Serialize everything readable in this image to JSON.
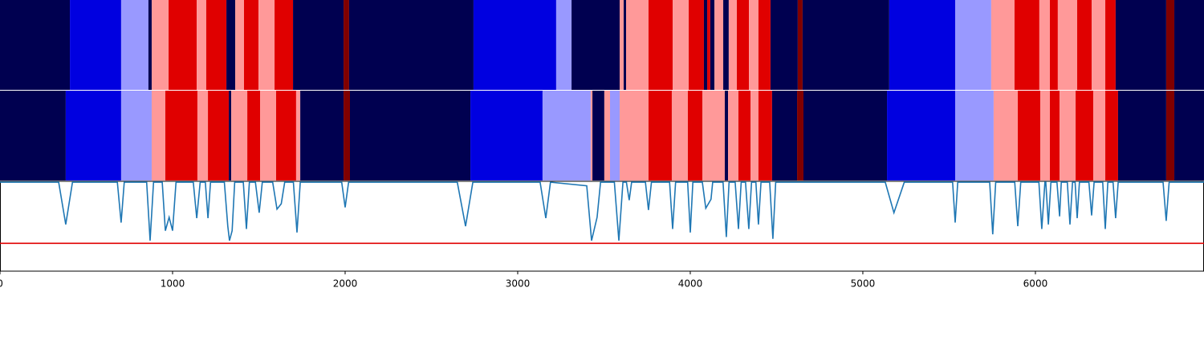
{
  "chart_data": [
    {
      "type": "segments",
      "xlim": [
        0,
        6977
      ],
      "segments": [
        {
          "start": 0,
          "end": 405,
          "color": "#000050"
        },
        {
          "start": 405,
          "end": 702,
          "color": "#0000e0"
        },
        {
          "start": 702,
          "end": 860,
          "color": "#9999ff"
        },
        {
          "start": 860,
          "end": 879,
          "color": "#000050"
        },
        {
          "start": 879,
          "end": 977,
          "color": "#ff9999"
        },
        {
          "start": 977,
          "end": 1140,
          "color": "#e00000"
        },
        {
          "start": 1140,
          "end": 1195,
          "color": "#ff9999"
        },
        {
          "start": 1195,
          "end": 1312,
          "color": "#e00000"
        },
        {
          "start": 1312,
          "end": 1363,
          "color": "#000050"
        },
        {
          "start": 1363,
          "end": 1414,
          "color": "#ff9999"
        },
        {
          "start": 1414,
          "end": 1498,
          "color": "#e00000"
        },
        {
          "start": 1498,
          "end": 1591,
          "color": "#ff9999"
        },
        {
          "start": 1591,
          "end": 1698,
          "color": "#e00000"
        },
        {
          "start": 1698,
          "end": 1991,
          "color": "#000050"
        },
        {
          "start": 1991,
          "end": 2023,
          "color": "#800000"
        },
        {
          "start": 2023,
          "end": 2744,
          "color": "#000050"
        },
        {
          "start": 2744,
          "end": 3223,
          "color": "#0000e0"
        },
        {
          "start": 3223,
          "end": 3312,
          "color": "#9999ff"
        },
        {
          "start": 3312,
          "end": 3591,
          "color": "#000050"
        },
        {
          "start": 3591,
          "end": 3614,
          "color": "#ff9999"
        },
        {
          "start": 3614,
          "end": 3628,
          "color": "#000050"
        },
        {
          "start": 3628,
          "end": 3758,
          "color": "#ff9999"
        },
        {
          "start": 3758,
          "end": 3898,
          "color": "#e00000"
        },
        {
          "start": 3898,
          "end": 3991,
          "color": "#ff9999"
        },
        {
          "start": 3991,
          "end": 4079,
          "color": "#e00000"
        },
        {
          "start": 4079,
          "end": 4098,
          "color": "#000050"
        },
        {
          "start": 4098,
          "end": 4116,
          "color": "#e00000"
        },
        {
          "start": 4116,
          "end": 4140,
          "color": "#000050"
        },
        {
          "start": 4140,
          "end": 4191,
          "color": "#ff9999"
        },
        {
          "start": 4191,
          "end": 4223,
          "color": "#000050"
        },
        {
          "start": 4223,
          "end": 4270,
          "color": "#ff9999"
        },
        {
          "start": 4270,
          "end": 4340,
          "color": "#e00000"
        },
        {
          "start": 4340,
          "end": 4395,
          "color": "#ff9999"
        },
        {
          "start": 4395,
          "end": 4465,
          "color": "#e00000"
        },
        {
          "start": 4465,
          "end": 4623,
          "color": "#000050"
        },
        {
          "start": 4623,
          "end": 4651,
          "color": "#800000"
        },
        {
          "start": 4651,
          "end": 5153,
          "color": "#000050"
        },
        {
          "start": 5153,
          "end": 5535,
          "color": "#0000e0"
        },
        {
          "start": 5535,
          "end": 5744,
          "color": "#9999ff"
        },
        {
          "start": 5744,
          "end": 5879,
          "color": "#ff9999"
        },
        {
          "start": 5879,
          "end": 6023,
          "color": "#e00000"
        },
        {
          "start": 6023,
          "end": 6084,
          "color": "#ff9999"
        },
        {
          "start": 6084,
          "end": 6130,
          "color": "#e00000"
        },
        {
          "start": 6130,
          "end": 6242,
          "color": "#ff9999"
        },
        {
          "start": 6242,
          "end": 6326,
          "color": "#e00000"
        },
        {
          "start": 6326,
          "end": 6405,
          "color": "#ff9999"
        },
        {
          "start": 6405,
          "end": 6465,
          "color": "#e00000"
        },
        {
          "start": 6465,
          "end": 6758,
          "color": "#000050"
        },
        {
          "start": 6758,
          "end": 6805,
          "color": "#800000"
        },
        {
          "start": 6805,
          "end": 6977,
          "color": "#000050"
        }
      ]
    },
    {
      "type": "segments",
      "xlim": [
        0,
        6977
      ],
      "segments": [
        {
          "start": 0,
          "end": 381,
          "color": "#000050"
        },
        {
          "start": 381,
          "end": 702,
          "color": "#0000e0"
        },
        {
          "start": 702,
          "end": 879,
          "color": "#9999ff"
        },
        {
          "start": 879,
          "end": 958,
          "color": "#ff9999"
        },
        {
          "start": 958,
          "end": 1144,
          "color": "#e00000"
        },
        {
          "start": 1144,
          "end": 1205,
          "color": "#ff9999"
        },
        {
          "start": 1205,
          "end": 1326,
          "color": "#e00000"
        },
        {
          "start": 1326,
          "end": 1340,
          "color": "#000050"
        },
        {
          "start": 1340,
          "end": 1433,
          "color": "#ff9999"
        },
        {
          "start": 1433,
          "end": 1507,
          "color": "#e00000"
        },
        {
          "start": 1507,
          "end": 1600,
          "color": "#ff9999"
        },
        {
          "start": 1600,
          "end": 1716,
          "color": "#e00000"
        },
        {
          "start": 1716,
          "end": 1740,
          "color": "#ff9999"
        },
        {
          "start": 1740,
          "end": 1991,
          "color": "#000050"
        },
        {
          "start": 1991,
          "end": 2028,
          "color": "#800000"
        },
        {
          "start": 2028,
          "end": 2726,
          "color": "#000050"
        },
        {
          "start": 2726,
          "end": 3144,
          "color": "#0000e0"
        },
        {
          "start": 3144,
          "end": 3423,
          "color": "#9999ff"
        },
        {
          "start": 3423,
          "end": 3433,
          "color": "#ff9999"
        },
        {
          "start": 3433,
          "end": 3502,
          "color": "#000050"
        },
        {
          "start": 3502,
          "end": 3535,
          "color": "#ff9999"
        },
        {
          "start": 3535,
          "end": 3591,
          "color": "#9999ff"
        },
        {
          "start": 3591,
          "end": 3758,
          "color": "#ff9999"
        },
        {
          "start": 3758,
          "end": 3893,
          "color": "#e00000"
        },
        {
          "start": 3893,
          "end": 3986,
          "color": "#ff9999"
        },
        {
          "start": 3986,
          "end": 4070,
          "color": "#e00000"
        },
        {
          "start": 4070,
          "end": 4200,
          "color": "#ff9999"
        },
        {
          "start": 4200,
          "end": 4219,
          "color": "#000050"
        },
        {
          "start": 4219,
          "end": 4279,
          "color": "#ff9999"
        },
        {
          "start": 4279,
          "end": 4349,
          "color": "#e00000"
        },
        {
          "start": 4349,
          "end": 4395,
          "color": "#ff9999"
        },
        {
          "start": 4395,
          "end": 4474,
          "color": "#e00000"
        },
        {
          "start": 4474,
          "end": 4619,
          "color": "#000050"
        },
        {
          "start": 4619,
          "end": 4656,
          "color": "#800000"
        },
        {
          "start": 4656,
          "end": 5140,
          "color": "#000050"
        },
        {
          "start": 5140,
          "end": 5535,
          "color": "#0000e0"
        },
        {
          "start": 5535,
          "end": 5758,
          "color": "#9999ff"
        },
        {
          "start": 5758,
          "end": 5898,
          "color": "#ff9999"
        },
        {
          "start": 5898,
          "end": 6028,
          "color": "#e00000"
        },
        {
          "start": 6028,
          "end": 6084,
          "color": "#ff9999"
        },
        {
          "start": 6084,
          "end": 6140,
          "color": "#e00000"
        },
        {
          "start": 6140,
          "end": 6233,
          "color": "#ff9999"
        },
        {
          "start": 6233,
          "end": 6335,
          "color": "#e00000"
        },
        {
          "start": 6335,
          "end": 6405,
          "color": "#ff9999"
        },
        {
          "start": 6405,
          "end": 6479,
          "color": "#e00000"
        },
        {
          "start": 6479,
          "end": 6758,
          "color": "#000050"
        },
        {
          "start": 6758,
          "end": 6805,
          "color": "#800000"
        },
        {
          "start": 6805,
          "end": 6977,
          "color": "#000050"
        }
      ]
    },
    {
      "type": "line",
      "xlim": [
        0,
        6977
      ],
      "ylim": [
        0,
        1
      ],
      "xticks": [
        0,
        1000,
        2000,
        3000,
        4000,
        5000,
        6000
      ],
      "color": "#1f77b4",
      "threshold": 0.31,
      "threshold_color": "#e00000",
      "x": [
        0,
        340,
        381,
        420,
        680,
        702,
        720,
        850,
        870,
        890,
        940,
        958,
        980,
        1000,
        1020,
        1120,
        1140,
        1160,
        1190,
        1205,
        1220,
        1300,
        1320,
        1330,
        1345,
        1360,
        1410,
        1428,
        1445,
        1480,
        1502,
        1520,
        1580,
        1605,
        1630,
        1650,
        1700,
        1721,
        1740,
        1980,
        2000,
        2020,
        2650,
        2698,
        2740,
        3130,
        3163,
        3190,
        3400,
        3428,
        3460,
        3480,
        3560,
        3586,
        3610,
        3630,
        3646,
        3660,
        3740,
        3758,
        3775,
        3880,
        3898,
        3915,
        3985,
        4000,
        4015,
        4070,
        4090,
        4120,
        4130,
        4190,
        4209,
        4225,
        4260,
        4279,
        4295,
        4320,
        4339,
        4355,
        4380,
        4395,
        4410,
        4460,
        4479,
        4495,
        5130,
        5180,
        5240,
        5520,
        5535,
        5550,
        5735,
        5753,
        5770,
        5880,
        5898,
        5915,
        6020,
        6037,
        6055,
        6060,
        6075,
        6090,
        6125,
        6140,
        6150,
        6185,
        6200,
        6215,
        6230,
        6242,
        6255,
        6310,
        6326,
        6340,
        6390,
        6405,
        6420,
        6450,
        6465,
        6480,
        6740,
        6758,
        6775,
        6977
      ],
      "values": [
        0.99,
        0.99,
        0.52,
        0.99,
        0.99,
        0.54,
        0.99,
        0.99,
        0.34,
        0.99,
        0.99,
        0.45,
        0.6,
        0.45,
        0.99,
        0.99,
        0.59,
        0.99,
        0.99,
        0.59,
        0.99,
        0.99,
        0.5,
        0.34,
        0.45,
        0.99,
        0.99,
        0.47,
        0.99,
        0.99,
        0.65,
        0.99,
        0.99,
        0.69,
        0.75,
        0.99,
        0.99,
        0.43,
        0.99,
        0.99,
        0.71,
        0.99,
        0.99,
        0.5,
        0.99,
        0.99,
        0.59,
        0.99,
        0.95,
        0.34,
        0.6,
        0.99,
        0.99,
        0.34,
        0.99,
        0.99,
        0.79,
        0.99,
        0.99,
        0.68,
        0.99,
        0.99,
        0.47,
        0.99,
        0.99,
        0.43,
        0.99,
        0.99,
        0.7,
        0.8,
        0.99,
        0.99,
        0.38,
        0.99,
        0.99,
        0.47,
        0.99,
        0.99,
        0.47,
        0.99,
        0.99,
        0.52,
        0.99,
        0.99,
        0.36,
        0.99,
        0.99,
        0.65,
        0.99,
        0.99,
        0.54,
        0.99,
        0.99,
        0.41,
        0.99,
        0.99,
        0.5,
        0.99,
        0.99,
        0.47,
        0.99,
        0.99,
        0.52,
        0.99,
        0.99,
        0.61,
        0.99,
        0.99,
        0.52,
        0.99,
        0.99,
        0.59,
        0.99,
        0.99,
        0.62,
        0.99,
        0.99,
        0.47,
        0.99,
        0.99,
        0.59,
        0.99,
        0.99,
        0.56,
        0.99,
        0.99
      ]
    }
  ]
}
